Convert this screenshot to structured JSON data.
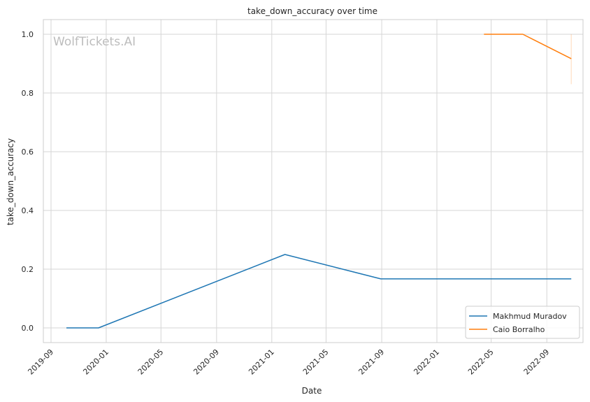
{
  "watermark": "WolfTickets.AI",
  "chart_data": {
    "type": "line",
    "title": "take_down_accuracy over time",
    "xlabel": "Date",
    "ylabel": "take_down_accuracy",
    "x_ticks": [
      "2019-09",
      "2020-01",
      "2020-05",
      "2020-09",
      "2021-01",
      "2021-05",
      "2021-09",
      "2022-01",
      "2022-05",
      "2022-09"
    ],
    "y_ticks": [
      0.0,
      0.2,
      0.4,
      0.6,
      0.8,
      1.0
    ],
    "xlim": [
      "2019-08-15",
      "2022-11-20"
    ],
    "ylim": [
      -0.05,
      1.05
    ],
    "grid": true,
    "legend_position": "lower-right",
    "series": [
      {
        "name": "Makhmud Muradov",
        "color": "#1f77b4",
        "points": [
          {
            "x": "2019-10-05",
            "y": 0.0
          },
          {
            "x": "2019-12-15",
            "y": 0.0
          },
          {
            "x": "2021-01-30",
            "y": 0.25
          },
          {
            "x": "2021-08-30",
            "y": 0.167
          },
          {
            "x": "2022-10-25",
            "y": 0.167
          }
        ]
      },
      {
        "name": "Caio Borralho",
        "color": "#ff7f0e",
        "points": [
          {
            "x": "2022-04-15",
            "y": 1.0
          },
          {
            "x": "2022-07-10",
            "y": 1.0
          },
          {
            "x": "2022-10-25",
            "y": 0.917
          }
        ],
        "band": {
          "x": "2022-10-25",
          "low": 0.83,
          "high": 1.0
        }
      }
    ]
  }
}
